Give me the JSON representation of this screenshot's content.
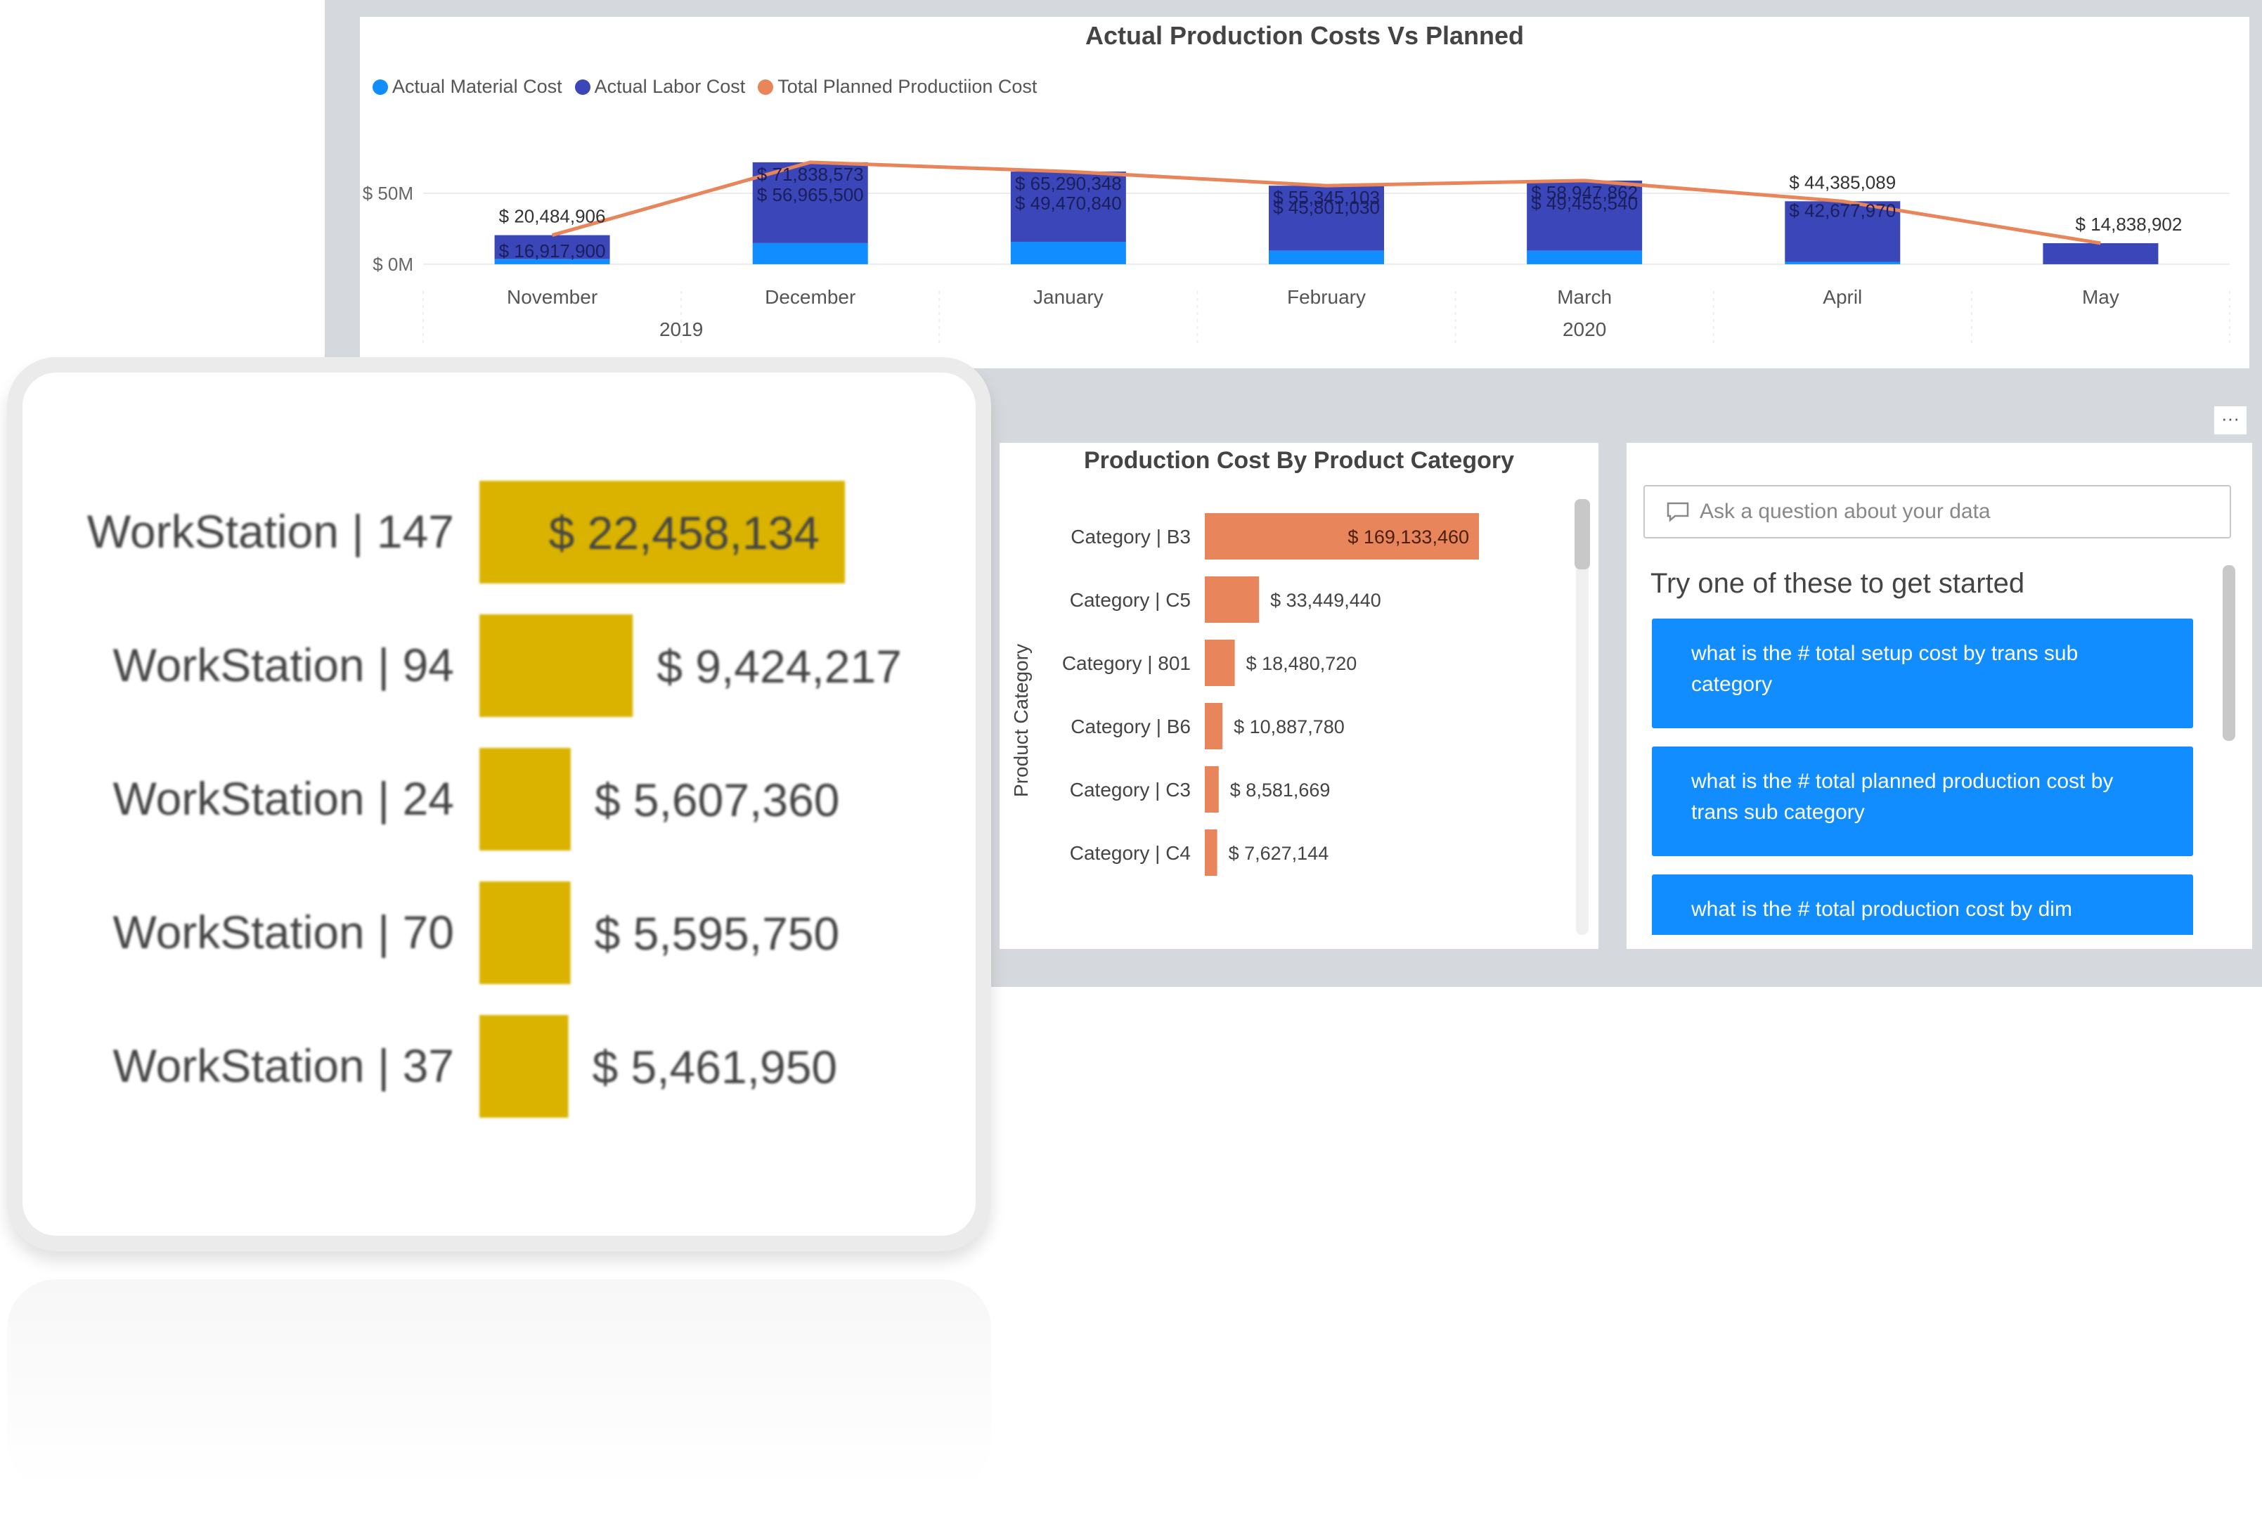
{
  "combo_chart": {
    "title": "Actual Production Costs Vs Planned",
    "legend": [
      {
        "label": "Actual Material Cost",
        "color": "#118dff"
      },
      {
        "label": "Actual Labor Cost",
        "color": "#3b46b8"
      },
      {
        "label": "Total Planned Productiion Cost",
        "color": "#e8855a"
      }
    ],
    "y_ticks": [
      "$ 50M",
      "$ 0M"
    ],
    "year_labels": [
      "2019",
      "2020"
    ]
  },
  "category_chart": {
    "title": "Production Cost By Product Category",
    "axis_label": "Product Category"
  },
  "workstation_chart": {},
  "qa": {
    "placeholder": "Ask a question about your data",
    "heading": "Try one of these to get started",
    "suggestions": [
      "what is the # total setup cost by trans sub category",
      "what is the # total planned production cost by trans sub category",
      "what is the # total production cost by dim"
    ]
  },
  "more_button": "···",
  "chart_data": [
    {
      "type": "bar",
      "title": "Actual Production Costs Vs Planned",
      "categories": [
        "November",
        "December",
        "January",
        "February",
        "March",
        "April",
        "May"
      ],
      "years": [
        {
          "label": "2019",
          "span": [
            "November",
            "December"
          ]
        },
        {
          "label": "2020",
          "span": [
            "January",
            "May"
          ]
        }
      ],
      "series": [
        {
          "name": "Actual Material Cost",
          "color": "#118dff",
          "values": [
            3567006,
            14873073,
            15819508,
            9543414,
            9492322,
            1707119,
            0
          ]
        },
        {
          "name": "Actual Labor Cost",
          "color": "#3b46b8",
          "values": [
            16917900,
            56965500,
            49470840,
            45801030,
            49455540,
            42677970,
            14838902
          ]
        },
        {
          "name": "Total Planned Productiion Cost",
          "type": "line",
          "color": "#e8855a",
          "values": [
            20484906,
            71838573,
            65290348,
            55345103,
            58947862,
            44385089,
            14838902
          ]
        }
      ],
      "data_labels": {
        "planned": [
          "$ 20,484,906",
          "$ 71,838,573",
          "$ 65,290,348",
          "$ 55,345,103",
          "$ 58,947,862",
          "$ 44,385,089",
          "$ 14,838,902"
        ],
        "labor": [
          "$ 16,917,900",
          "$ 56,965,500",
          "$ 49,470,840",
          "$ 45,801,030",
          "$ 49,455,540",
          "$ 42,677,970",
          ""
        ]
      },
      "ylim": [
        -4000000,
        100000000
      ],
      "y_ticks": [
        {
          "value": 50000000,
          "label": "$ 50M"
        },
        {
          "value": 0,
          "label": "$ 0M"
        }
      ],
      "legend": "top-left",
      "grid": true
    },
    {
      "type": "bar",
      "orientation": "horizontal",
      "title": "Production Cost By Product Category",
      "ylabel": "Product Category",
      "categories": [
        "Category | B3",
        "Category | C5",
        "Category | 801",
        "Category | B6",
        "Category | C3",
        "Category | C4"
      ],
      "values": [
        169133460,
        33449440,
        18480720,
        10887780,
        8581669,
        7627144
      ],
      "value_labels": [
        "$ 169,133,460",
        "$ 33,449,440",
        "$ 18,480,720",
        "$ 10,887,780",
        "$ 8,581,669",
        "$ 7,627,144"
      ],
      "color": "#e8855a",
      "xlim": [
        0,
        169133460
      ]
    },
    {
      "type": "bar",
      "orientation": "horizontal",
      "categories": [
        "WorkStation | 147",
        "WorkStation | 94",
        "WorkStation | 24",
        "WorkStation | 70",
        "WorkStation | 37"
      ],
      "values": [
        22458134,
        9424217,
        5607360,
        5595750,
        5461950
      ],
      "value_labels": [
        "$ 22,458,134",
        "$ 9,424,217",
        "$ 5,607,360",
        "$ 5,595,750",
        "$ 5,461,950"
      ],
      "color": "#d9b300",
      "xlim": [
        0,
        22458134
      ]
    }
  ]
}
